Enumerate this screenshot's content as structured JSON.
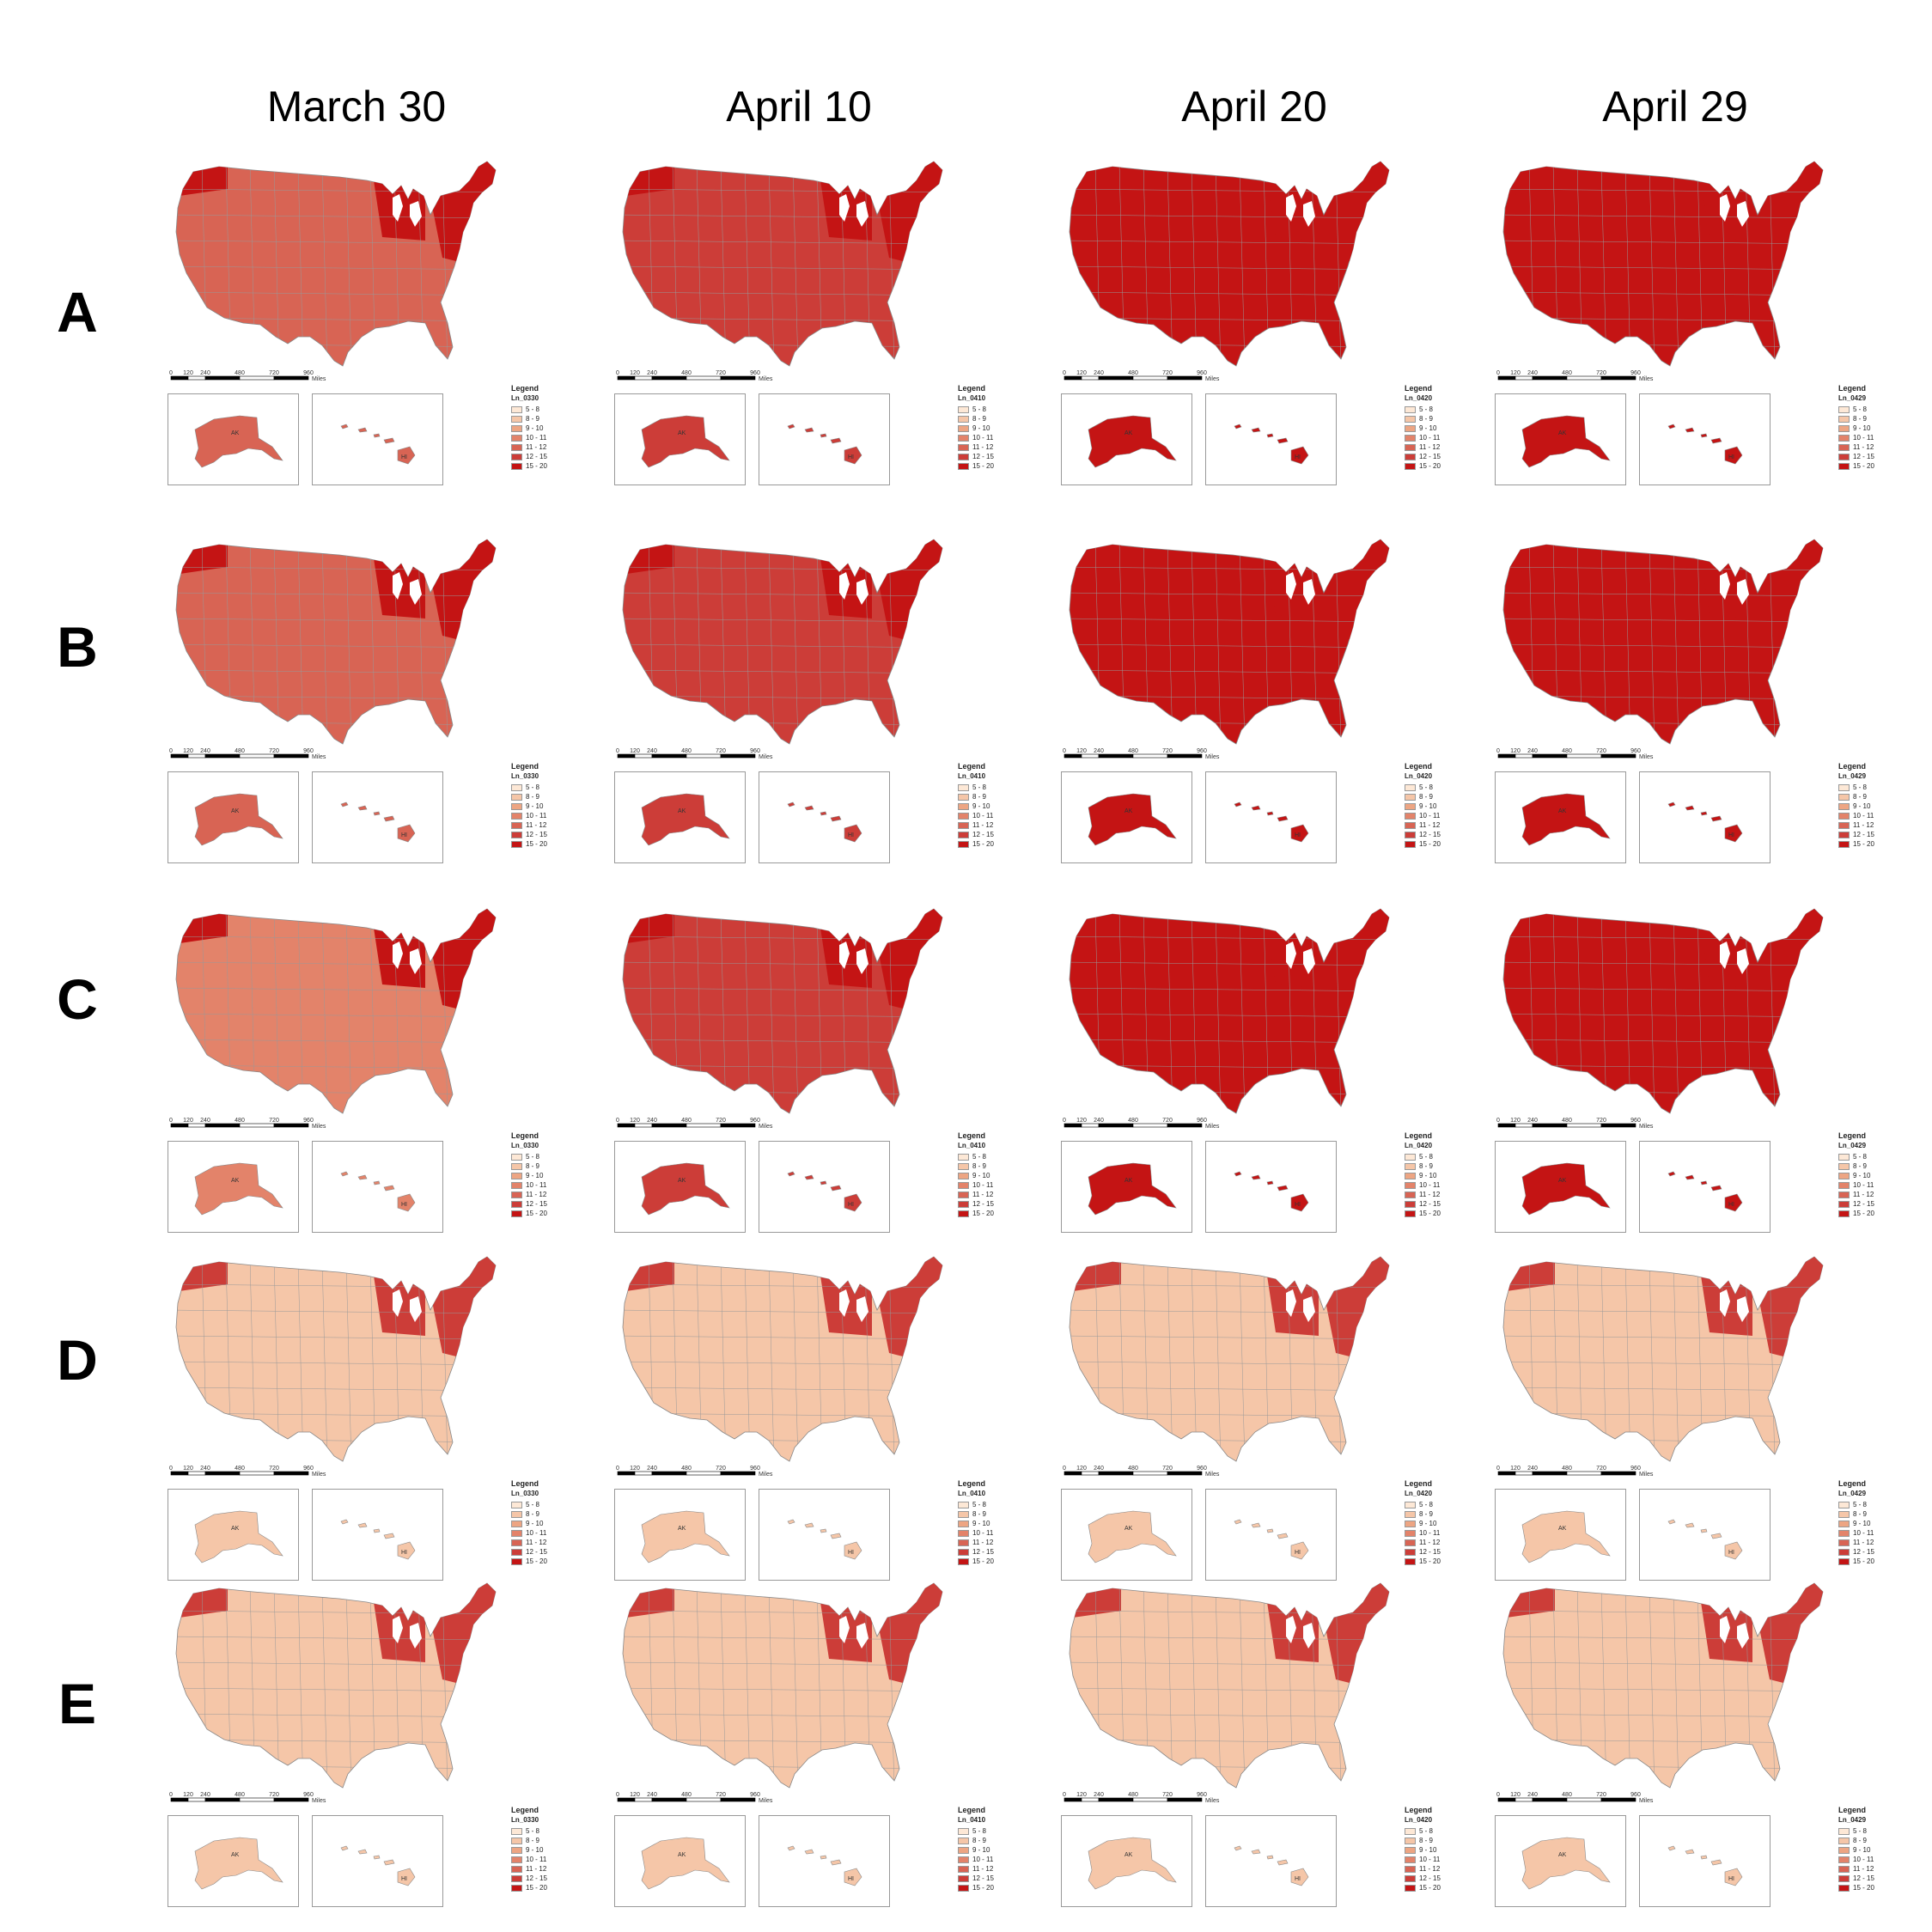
{
  "columns": [
    "March 30",
    "April 10",
    "April 20",
    "April 29"
  ],
  "rows": [
    "A",
    "B",
    "C",
    "D",
    "E"
  ],
  "legend": {
    "title": "Legend",
    "fields": [
      "Ln_0330",
      "Ln_0410",
      "Ln_0420",
      "Ln_0429"
    ],
    "classes": [
      "5 - 8",
      "8 - 9",
      "9 - 10",
      "10 - 11",
      "11 - 12",
      "12 - 15",
      "15 - 20"
    ],
    "colors": [
      "#fde8d6",
      "#f5c6a8",
      "#eda583",
      "#e3836a",
      "#d86454",
      "#cc3d38",
      "#c41414"
    ]
  },
  "scalebar": {
    "ticks": [
      "0",
      "120",
      "240",
      "480",
      "720",
      "960"
    ],
    "unit": "Miles"
  },
  "insets": {
    "alaska": "AK",
    "hawaii": "HI"
  },
  "panel_shades": {
    "A": [
      4,
      5,
      6,
      6
    ],
    "B": [
      4,
      5,
      6,
      6
    ],
    "C": [
      3,
      5,
      6,
      6
    ],
    "D": [
      1,
      1,
      1,
      1
    ],
    "E": [
      1,
      1,
      1,
      1
    ]
  },
  "hotspot_shades": {
    "A": [
      6,
      6,
      6,
      6
    ],
    "B": [
      6,
      6,
      6,
      6
    ],
    "C": [
      6,
      6,
      6,
      6
    ],
    "D": [
      5,
      5,
      5,
      5
    ],
    "E": [
      5,
      5,
      5,
      5
    ]
  }
}
